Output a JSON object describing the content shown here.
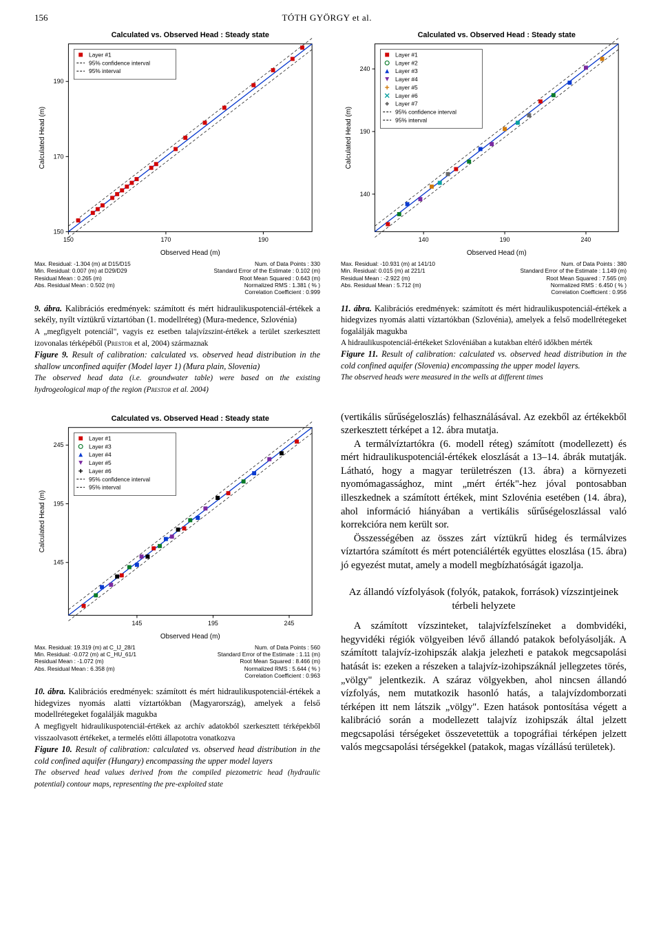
{
  "page_number": "156",
  "running_head": "TÓTH GYÖRGY et al.",
  "fig9": {
    "chart_title": "Calculated vs. Observed Head : Steady state",
    "legend": [
      "Layer #1",
      "95% confidence interval",
      "95% interval"
    ],
    "markers": [
      "square",
      "dash",
      "dash"
    ],
    "marker_colors": [
      "#d10707",
      "#000000",
      "#000000"
    ],
    "xlabel": "Observed Head (m)",
    "ylabel": "Calculated Head (m)",
    "bg": "#ffffff",
    "axis_color": "#000000",
    "grid": false,
    "xlim": [
      150,
      200
    ],
    "ylim": [
      150,
      200
    ],
    "xticks": [
      150,
      170,
      190
    ],
    "yticks": [
      150,
      170,
      190
    ],
    "tick_fontsize": 9,
    "title_fontsize": 11,
    "label_fontsize": 10,
    "points_x": [
      152,
      155,
      156,
      157,
      159,
      160,
      161,
      162,
      163,
      164,
      167,
      168,
      172,
      174,
      178,
      182,
      188,
      192,
      196,
      198
    ],
    "points_y": [
      153,
      155,
      156,
      157,
      159,
      160,
      161,
      162,
      163,
      164,
      167,
      168,
      172,
      175,
      179,
      183,
      189,
      193,
      196,
      199
    ],
    "point_color": "#d10707",
    "point_size": 3,
    "diag_color": "#0033cc",
    "stats_left": "Max. Residual: -1.304 (m) at D15/D15\nMin. Residual: 0.007 (m) at D29/D29\nResidual Mean : 0.265 (m)\nAbs. Residual Mean : 0.502 (m)",
    "stats_right": "Num. of Data Points : 330\nStandard Error of the Estimate : 0.102 (m)\nRoot Mean Squared : 0.643 (m)\nNormalized RMS : 1.381 ( % )\nCorrelation Coefficient : 0.999",
    "caption_hu": "9. ábra. Kalibrációs eredmények: számított és mért hidraulikuspotenciál-értékek a sekély, nyílt víztükrű víztartóban (1. modellréteg) (Mura-medence, Szlovénia)\nA „megfigyelt potenciál\", vagyis ez esetben talajvízszint-értékek a terület szerkesztett izovonalas térképéből (PRESTOR et al, 2004) származnak",
    "caption_en": "Figure 9. Result of calibration: calculated vs. observed head distribution in the shallow unconfined aquifer (Model layer 1) (Mura plain, Slovenia)\nThe observed head data (i.e. groundwater table) were based on the existing hydrogeological map of the region (PRESTOR et al. 2004)"
  },
  "fig11": {
    "chart_title": "Calculated vs. Observed Head : Steady state",
    "legend": [
      "Layer #1",
      "Layer #2",
      "Layer #3",
      "Layer #4",
      "Layer #5",
      "Layer #6",
      "Layer #7",
      "95% confidence interval",
      "95% interval"
    ],
    "markers": [
      "square",
      "circle",
      "triangle",
      "triangle-down",
      "plus",
      "x",
      "diamond",
      "dash",
      "dash"
    ],
    "marker_colors": [
      "#d10707",
      "#0a7a2a",
      "#0a3bd1",
      "#7a2aa0",
      "#d17a0a",
      "#0aa0a0",
      "#6a6a6a",
      "#000000",
      "#000000"
    ],
    "xlabel": "Observed Head (m)",
    "ylabel": "Calculated Head (m)",
    "bg": "#ffffff",
    "axis_color": "#000000",
    "xlim": [
      110,
      260
    ],
    "ylim": [
      110,
      260
    ],
    "xticks": [
      140,
      190,
      240
    ],
    "yticks": [
      140,
      190,
      240
    ],
    "tick_fontsize": 9,
    "title_fontsize": 11,
    "label_fontsize": 10,
    "points_x": [
      118,
      125,
      130,
      138,
      145,
      150,
      155,
      160,
      168,
      175,
      182,
      190,
      198,
      205,
      212,
      220,
      230,
      240,
      250
    ],
    "points_y": [
      116,
      124,
      132,
      136,
      146,
      149,
      156,
      160,
      166,
      176,
      180,
      192,
      197,
      203,
      214,
      219,
      229,
      241,
      248
    ],
    "point_colors": [
      "#d10707",
      "#0a7a2a",
      "#0a3bd1",
      "#7a2aa0",
      "#d17a0a",
      "#0aa0a0",
      "#6a6a6a",
      "#d10707",
      "#0a7a2a",
      "#0a3bd1",
      "#7a2aa0",
      "#d17a0a",
      "#0aa0a0",
      "#6a6a6a",
      "#d10707",
      "#0a7a2a",
      "#0a3bd1",
      "#7a2aa0",
      "#d17a0a"
    ],
    "point_size": 3,
    "diag_color": "#0033cc",
    "stats_left": "Max. Residual: -10.931 (m) at 141/10\nMin. Residual: 0.015 (m) at 221/1\nResidual Mean : -2.922 (m)\nAbs. Residual Mean : 5.712 (m)",
    "stats_right": "Num. of Data Points : 380\nStandard Error of the Estimate : 1.149 (m)\nRoot Mean Squared : 7.565 (m)\nNormalized RMS : 6.450 ( % )\nCorrelation Coefficient : 0.956",
    "caption_hu": "11. ábra. Kalibrációs eredmények: számított és mért hidraulikuspotenciál-értékek a hidegvizes nyomás alatti víztartókban (Szlovénia), amelyek a felső modellrétegeket fogalálják magukba\nA hidraulikuspotenciál-értékeket Szlovéniában a kutakban eltérő időkben mérték",
    "caption_en": "Figure 11. Result of calibration: calculated vs. observed head distribution in the cold confined aquifer (Slovenia) encompassing the upper model layers.\nThe observed heads were measured in the wells at different times"
  },
  "fig10": {
    "chart_title": "Calculated vs. Observed Head : Steady state",
    "legend": [
      "Layer #1",
      "Layer #3",
      "Layer #4",
      "Layer #5",
      "Layer #6",
      "95% confidence interval",
      "95% interval"
    ],
    "markers": [
      "square",
      "circle",
      "triangle",
      "triangle-down",
      "plus",
      "dash",
      "dash"
    ],
    "marker_colors": [
      "#d10707",
      "#0a7a2a",
      "#0a3bd1",
      "#7a2aa0",
      "#000000",
      "#000000",
      "#000000"
    ],
    "xlabel": "Observed Head (m)",
    "ylabel": "Calculated Head (m)",
    "bg": "#ffffff",
    "axis_color": "#000000",
    "xlim": [
      100,
      260
    ],
    "ylim": [
      100,
      260
    ],
    "xticks": [
      145,
      195,
      245
    ],
    "yticks": [
      145,
      195,
      245
    ],
    "tick_fontsize": 9,
    "title_fontsize": 11,
    "label_fontsize": 10,
    "points_x": [
      110,
      118,
      122,
      128,
      132,
      135,
      140,
      145,
      148,
      152,
      156,
      160,
      164,
      168,
      172,
      176,
      180,
      185,
      190,
      198,
      205,
      215,
      222,
      232,
      240,
      250
    ],
    "points_y": [
      108,
      117,
      124,
      126,
      133,
      134,
      141,
      143,
      150,
      150,
      157,
      159,
      165,
      167,
      173,
      174,
      181,
      183,
      191,
      200,
      204,
      214,
      221,
      233,
      238,
      248
    ],
    "point_colors": [
      "#d10707",
      "#0a7a2a",
      "#0a3bd1",
      "#7a2aa0",
      "#000000",
      "#d10707",
      "#0a7a2a",
      "#0a3bd1",
      "#7a2aa0",
      "#000000",
      "#d10707",
      "#0a7a2a",
      "#0a3bd1",
      "#7a2aa0",
      "#000000",
      "#d10707",
      "#0a7a2a",
      "#0a3bd1",
      "#7a2aa0",
      "#000000",
      "#d10707",
      "#0a7a2a",
      "#0a3bd1",
      "#7a2aa0",
      "#000000",
      "#d10707"
    ],
    "point_size": 3,
    "diag_color": "#0033cc",
    "stats_left": "Max. Residual: 19.319 (m) at C_IJ_28/1\nMin. Residual: -0.072 (m) at C_HU_61/1\nResidual Mean : -1.072 (m)\nAbs. Residual Mean : 6.358 (m)",
    "stats_right": "Num. of Data Points : 560\nStandard Error of the Estimate : 1.11 (m)\nRoot Mean Squared : 8.466 (m)\nNormalized RMS : 5.644 ( % )\nCorrelation Coefficient : 0.963",
    "caption_hu": "10. ábra. Kalibrációs eredmények: számított és mért hidraulikuspotenciál-értékek a hidegvizes nyomás alatti víztartókban (Magyarország), amelyek a felső modellrétegeket fogalálják magukba\nA megfigyelt hidraulikuspotenciál-értékek az archív adatokból szerkesztett térképekből visszaolvasott értékeket, a termelés előtti állapototra vonatkozva",
    "caption_en": "Figure 10. Result of calibration: calculated vs. observed head distribution in the cold confined aquifer (Hungary) encompassing the upper model layers\nThe observed head values derived from the compiled piezometric head (hydraulic potential) contour maps, representing the pre-exploited state"
  },
  "body_right_1": "(vertikális sűrűségeloszlás) felhasználásával. Az ezekből az értékekből szerkesztett térképet a 12. ábra mutatja.",
  "body_right_2": "A termálvíztartókra (6. modell réteg) számított (modellezett) és mért hidraulikuspotenciál-értékek eloszlását a 13–14. ábrák mutatják. Látható, hogy a magyar területrészen (13. ábra) a környezeti nyomómagassághoz, mint „mért érték\"-hez jóval pontosabban illeszkednek a számított értékek, mint Szlovénia esetében (14. ábra), ahol információ hiányában a vertikális sűrűségeloszlással való korrekcióra nem került sor.",
  "body_right_3": "Összességében az összes zárt víztükrű hideg és termálvizes víztartóra számított és mért potenciálérték együttes eloszlása (15. ábra) jó egyezést mutat, amely a modell megbízhatóságát igazolja.",
  "subhead": "Az állandó vízfolyások (folyók, patakok, források) vízszintjeinek térbeli helyzete",
  "body_right_4": "A számított vízszinteket, talajvízfelszíneket a dombvidéki, hegyvidéki régiók völgyeiben lévő állandó patakok befolyásolják. A számított talajvíz-izohipszák alakja jelezheti e patakok megcsapolási hatását is: ezeken a részeken a talajvíz-izohipszáknál jellegzetes törés, „völgy\" jelentkezik. A száraz völgyekben, ahol nincsen állandó vízfolyás, nem mutatkozik hasonló hatás, a talajvízdomborzati térképen itt nem látszik „völgy\". Ezen hatások pontosítása végett a kalibráció során a modellezett talajvíz izohipszák által jelzett megcsapolási térségeket összevetettük a topográfiai térképen jelzett valós megcsapolási térségekkel (patakok, magas vízállású területek)."
}
